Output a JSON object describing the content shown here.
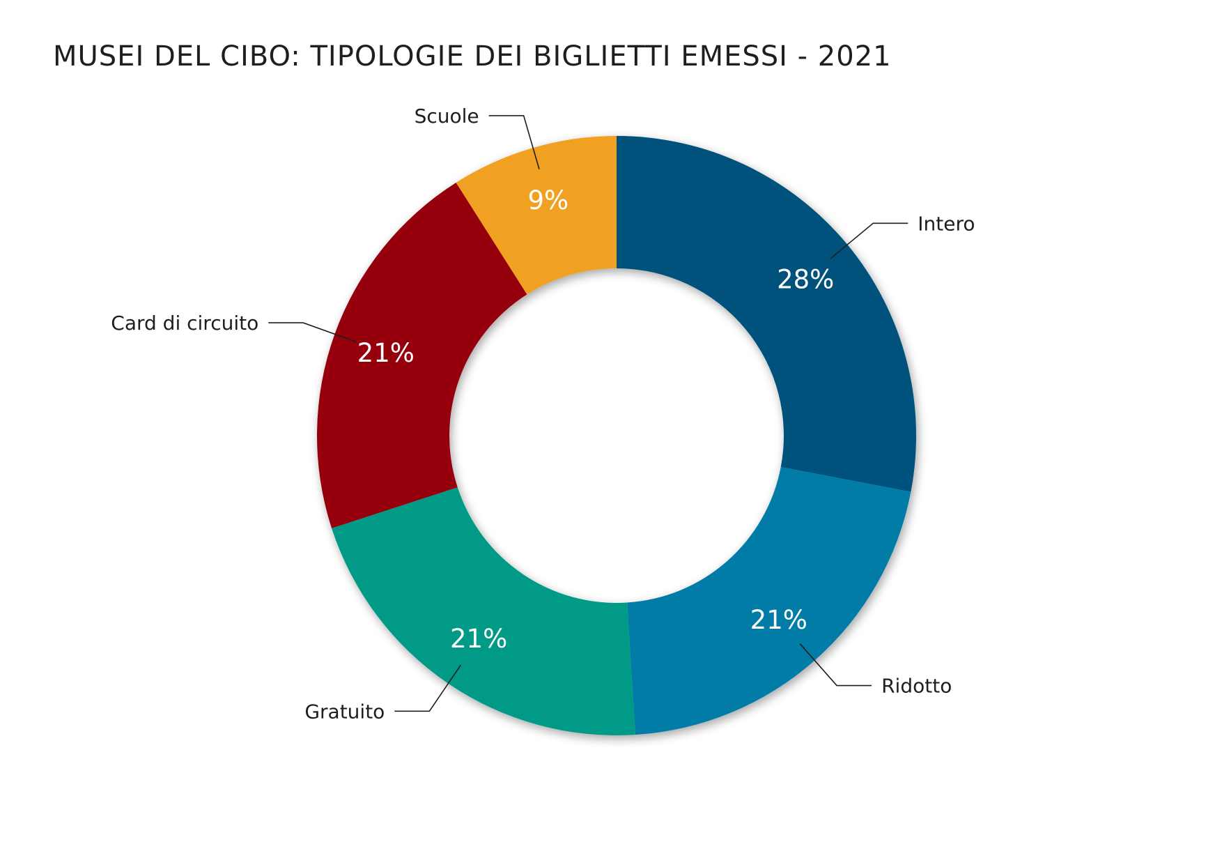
{
  "chart_data": {
    "type": "pie",
    "variant": "donut",
    "title": "MUSEI DEL CIBO: TIPOLOGIE DEI BIGLIETTI EMESSI - 2021",
    "unit": "%",
    "start_angle_degrees": 0,
    "direction": "clockwise",
    "slices": [
      {
        "label": "Intero",
        "value": 28,
        "value_label": "28%",
        "color": "#06517b"
      },
      {
        "label": "Ridotto",
        "value": 21,
        "value_label": "21%",
        "color": "#047ba7"
      },
      {
        "label": "Gratuito",
        "value": 21,
        "value_label": "21%",
        "color": "#049a87"
      },
      {
        "label": "Card di circuito",
        "value": 21,
        "value_label": "21%",
        "color": "#960008"
      },
      {
        "label": "Scuole",
        "value": 9,
        "value_label": "9%",
        "color": "#f0a121"
      }
    ],
    "legend": "none",
    "labels": "outside with leader lines"
  }
}
